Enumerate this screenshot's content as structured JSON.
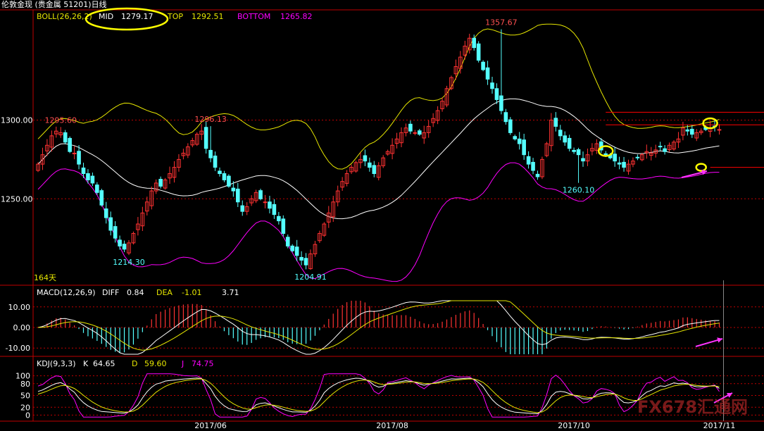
{
  "window_title": "伦敦金现 (贵金属 51201)日线",
  "colors": {
    "background": "#000000",
    "up": "#ff3232",
    "down": "#54ffff",
    "mid": "#ffffff",
    "top": "#e6e600",
    "bottom": "#ff00ff",
    "axis": "#c00000",
    "annotation": "#ffff00",
    "arrow": "#ff33ff",
    "hline": "#ff0000"
  },
  "watermark": "FX678汇通网",
  "chart_data": [
    {
      "type": "candlestick",
      "panel": "price",
      "indicator": {
        "name": "BOLL(26,26,2)",
        "mid_label": "MID",
        "mid": "1279.17",
        "top_label": "TOP",
        "top": "1292.51",
        "bottom_label": "BOTTOM",
        "bottom": "1265.82"
      },
      "y_ticks": [
        "1300.00",
        "1250.00"
      ],
      "y_tick_values": [
        1300,
        1250
      ],
      "ylim": [
        1196,
        1370
      ],
      "period_label": "164天",
      "x_ticks": [
        "2017/06",
        "2017/08",
        "2017/10",
        "2017/11"
      ],
      "x_tick_index": [
        38,
        78,
        118,
        150
      ],
      "annotations": [
        {
          "text": "1295.60",
          "index": 5,
          "value": 1295.6,
          "kind": "high"
        },
        {
          "text": "1296.13",
          "index": 38,
          "value": 1296.13,
          "kind": "high"
        },
        {
          "text": "1357.67",
          "index": 102,
          "value": 1357.67,
          "kind": "high"
        },
        {
          "text": "1214.30",
          "index": 20,
          "value": 1214.3,
          "kind": "low"
        },
        {
          "text": "1204.91",
          "index": 60,
          "value": 1204.91,
          "kind": "low"
        },
        {
          "text": "1260.10",
          "index": 119,
          "value": 1260.1,
          "kind": "low"
        }
      ],
      "hlines": [
        {
          "value": 1305,
          "from_index": 125
        },
        {
          "value": 1297,
          "from_index": 125
        },
        {
          "value": 1270,
          "from_index": 148
        }
      ],
      "close": [
        1272,
        1278,
        1284,
        1290,
        1293,
        1292,
        1286,
        1280,
        1279,
        1272,
        1266,
        1262,
        1260,
        1254,
        1246,
        1238,
        1230,
        1225,
        1220,
        1218,
        1222,
        1228,
        1234,
        1241,
        1248,
        1255,
        1260,
        1258,
        1262,
        1266,
        1270,
        1275,
        1279,
        1283,
        1287,
        1291,
        1293,
        1282,
        1276,
        1270,
        1266,
        1262,
        1258,
        1255,
        1248,
        1242,
        1245,
        1250,
        1254,
        1250,
        1248,
        1244,
        1240,
        1236,
        1228,
        1220,
        1217,
        1214,
        1211,
        1208,
        1215,
        1221,
        1228,
        1234,
        1241,
        1248,
        1255,
        1261,
        1266,
        1270,
        1273,
        1275,
        1274,
        1270,
        1266,
        1271,
        1276,
        1280,
        1284,
        1288,
        1292,
        1295,
        1293,
        1292,
        1291,
        1292,
        1296,
        1301,
        1306,
        1312,
        1320,
        1327,
        1334,
        1340,
        1347,
        1352,
        1346,
        1338,
        1332,
        1326,
        1320,
        1313,
        1306,
        1299,
        1292,
        1288,
        1285,
        1278,
        1272,
        1268,
        1264,
        1275,
        1285,
        1300,
        1296,
        1290,
        1286,
        1282,
        1280,
        1278,
        1274,
        1278,
        1282,
        1285,
        1281,
        1278,
        1276,
        1274,
        1272,
        1270,
        1272,
        1274,
        1276,
        1278,
        1280,
        1279,
        1281,
        1283,
        1280,
        1284,
        1286,
        1288,
        1295,
        1293,
        1291,
        1292,
        1293,
        1294,
        1295,
        1296,
        1294
      ]
    },
    {
      "type": "line",
      "panel": "macd",
      "indicator": {
        "name": "MACD(12,26,9)",
        "diff_label": "DIFF",
        "diff": "0.84",
        "dea_label": "DEA",
        "dea": "-1.01",
        "macd": "3.71"
      },
      "y_ticks": [
        "10.00",
        "0.00",
        "-10.00"
      ],
      "y_tick_values": [
        10,
        0,
        -10
      ],
      "ylim": [
        -13,
        13
      ]
    },
    {
      "type": "line",
      "panel": "kdj",
      "indicator": {
        "name": "KDJ(9,3,3)",
        "k_label": "K",
        "k": "64.65",
        "d_label": "D",
        "d": "59.60",
        "j_label": "J",
        "j": "74.75"
      },
      "y_ticks": [
        "100",
        "80",
        "50",
        "20",
        "0"
      ],
      "y_tick_values": [
        100,
        80,
        50,
        20,
        0
      ],
      "ylim": [
        -10,
        110
      ]
    }
  ]
}
